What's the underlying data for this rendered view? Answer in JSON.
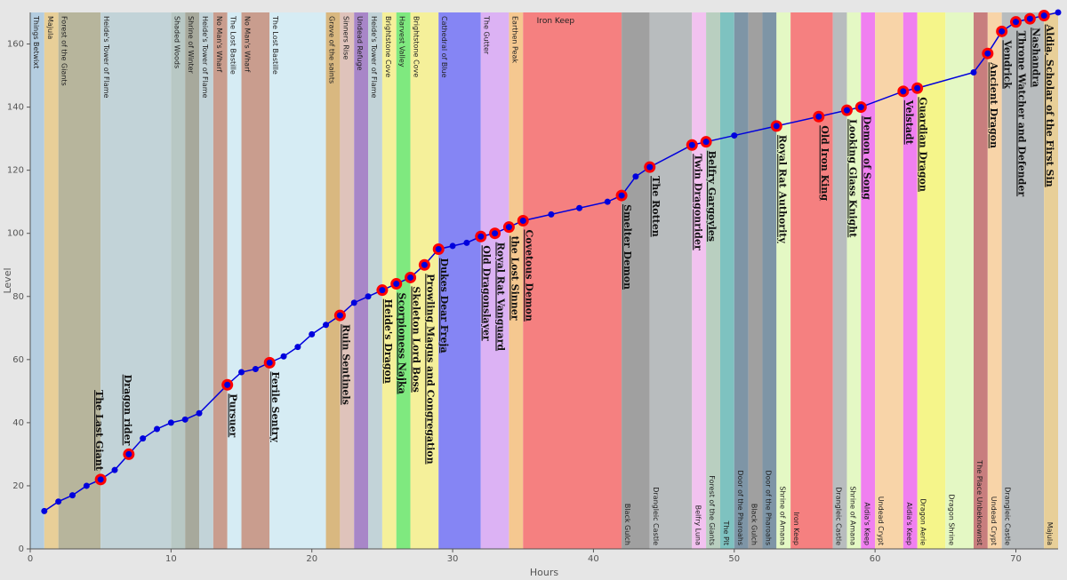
{
  "chart_data": {
    "type": "line",
    "xlabel": "Hours",
    "ylabel": "Level",
    "xlim": [
      0,
      73
    ],
    "ylim": [
      0,
      170
    ],
    "x_ticks": [
      0,
      10,
      20,
      30,
      40,
      50,
      60,
      70
    ],
    "y_ticks": [
      0,
      20,
      40,
      60,
      80,
      100,
      120,
      140,
      160
    ],
    "grid": false,
    "zones": [
      {
        "name": "Things Betwixt",
        "start": 0,
        "end": 1,
        "color": "#b4cde0"
      },
      {
        "name": "Majula",
        "start": 1,
        "end": 2,
        "color": "#e8cf98"
      },
      {
        "name": "Forest of the Giants",
        "start": 2,
        "end": 5,
        "color": "#b7b59c"
      },
      {
        "name": "Heide's Tower of Flame",
        "start": 5,
        "end": 10,
        "color": "#c2d3d8"
      },
      {
        "name": "Shaded Woods",
        "start": 10,
        "end": 11,
        "color": "#b8c8c4"
      },
      {
        "name": "Shrine of Winter",
        "start": 11,
        "end": 12,
        "color": "#a7a99c"
      },
      {
        "name": "Heide's Tower of Flame",
        "start": 12,
        "end": 13,
        "color": "#c2d3d8"
      },
      {
        "name": "No Man's Wharf",
        "start": 13,
        "end": 14,
        "color": "#c99d8e"
      },
      {
        "name": "The Lost Bastille",
        "start": 14,
        "end": 15,
        "color": "#d6ecf4"
      },
      {
        "name": "No Man's Wharf",
        "start": 15,
        "end": 17,
        "color": "#c99d8e"
      },
      {
        "name": "The Lost Bastille",
        "start": 17,
        "end": 21,
        "color": "#d6ecf4"
      },
      {
        "name": "Grave of the saints",
        "start": 21,
        "end": 22,
        "color": "#d9b880"
      },
      {
        "name": "Sinners Rise",
        "start": 22,
        "end": 23,
        "color": "#dfc3bb"
      },
      {
        "name": "Undead Refuge",
        "start": 23,
        "end": 24,
        "color": "#a886c8"
      },
      {
        "name": "Heide's Tower of Flame",
        "start": 24,
        "end": 25,
        "color": "#c2d3d8"
      },
      {
        "name": "Brightstone Cove",
        "start": 25,
        "end": 26,
        "color": "#f5f09a"
      },
      {
        "name": "Harvest Valley",
        "start": 26,
        "end": 27,
        "color": "#7fe97f"
      },
      {
        "name": "Brightstone Cove",
        "start": 27,
        "end": 29,
        "color": "#f5f09a"
      },
      {
        "name": "Cathedral of Blue",
        "start": 29,
        "end": 32,
        "color": "#8585f4"
      },
      {
        "name": "The Gutter",
        "start": 32,
        "end": 34,
        "color": "#dcb2f4"
      },
      {
        "name": "Earthen Peak",
        "start": 34,
        "end": 35,
        "color": "#f5c890"
      },
      {
        "name": "Iron Keep",
        "start": 35,
        "end": 42,
        "color": "#f58080"
      },
      {
        "name": "Black Gulch",
        "start": 42,
        "end": 44,
        "color": "#a0a0a0"
      },
      {
        "name": "Drangleic Castle",
        "start": 44,
        "end": 47,
        "color": "#b8bcbe"
      },
      {
        "name": "Belfry Luna",
        "start": 47,
        "end": 48,
        "color": "#f2c2f0"
      },
      {
        "name": "Forest of the Giants",
        "start": 48,
        "end": 49,
        "color": "#b9cfc0"
      },
      {
        "name": "The Pit",
        "start": 49,
        "end": 50,
        "color": "#7ec2c0"
      },
      {
        "name": "Door of the Pharoahs",
        "start": 50,
        "end": 51,
        "color": "#7e95a6"
      },
      {
        "name": "Black Gulch",
        "start": 51,
        "end": 52,
        "color": "#a0a0a0"
      },
      {
        "name": "Door of the Pharoahs",
        "start": 52,
        "end": 53,
        "color": "#7e95a6"
      },
      {
        "name": "Shrine of Amana",
        "start": 53,
        "end": 54,
        "color": "#e4f8c4"
      },
      {
        "name": "Iron Keep",
        "start": 54,
        "end": 57,
        "color": "#f58080"
      },
      {
        "name": "Drangleic Castle",
        "start": 57,
        "end": 58,
        "color": "#b8bcbe"
      },
      {
        "name": "Shrine of Amana",
        "start": 58,
        "end": 59,
        "color": "#e4f8c4"
      },
      {
        "name": "Aldia's Keep",
        "start": 59,
        "end": 60,
        "color": "#f080f0"
      },
      {
        "name": "Undead Crypt",
        "start": 60,
        "end": 62,
        "color": "#f8d4a8"
      },
      {
        "name": "Aldia's Keep",
        "start": 62,
        "end": 63,
        "color": "#f080f0"
      },
      {
        "name": "Dragon Aerie",
        "start": 63,
        "end": 65,
        "color": "#f5f58a"
      },
      {
        "name": "Dragon Shrine",
        "start": 65,
        "end": 67,
        "color": "#e4f8c4"
      },
      {
        "name": "The Place Unbeknownst",
        "start": 67,
        "end": 68,
        "color": "#c87e7e"
      },
      {
        "name": "Undead Crypt",
        "start": 68,
        "end": 69,
        "color": "#f8d4a8"
      },
      {
        "name": "Drangleic Castle",
        "start": 69,
        "end": 72,
        "color": "#b8bcbe"
      },
      {
        "name": "Majula",
        "start": 72,
        "end": 73,
        "color": "#e8cf98"
      }
    ],
    "zone_label_position": [
      "top",
      "top",
      "top",
      "top",
      "top",
      "top",
      "top",
      "top",
      "top",
      "top",
      "top",
      "top",
      "top",
      "top",
      "top",
      "top",
      "top",
      "top",
      "top",
      "top",
      "top",
      "top",
      "bottom",
      "bottom",
      "bottom",
      "bottom",
      "bottom",
      "bottom",
      "bottom",
      "bottom",
      "bottom",
      "bottom",
      "bottom",
      "bottom",
      "bottom",
      "bottom",
      "bottom",
      "bottom",
      "bottom",
      "bottom",
      "bottom",
      "bottom",
      "bottom"
    ],
    "series": [
      {
        "type": "line",
        "x": [
          1,
          2,
          3,
          4,
          5,
          6,
          7,
          8,
          9,
          10,
          11,
          12,
          14,
          15,
          16,
          17,
          18,
          19,
          20,
          21,
          22,
          23,
          24,
          25,
          26,
          27,
          28,
          29,
          30,
          31,
          32,
          33,
          34,
          35,
          37,
          39,
          41,
          42,
          43,
          44,
          47,
          48,
          50,
          53,
          56,
          58,
          59,
          62,
          63,
          67,
          68,
          69,
          70,
          71,
          72,
          73
        ],
        "y": [
          12,
          15,
          17,
          20,
          22,
          25,
          30,
          35,
          38,
          40,
          41,
          43,
          52,
          56,
          57,
          59,
          61,
          64,
          68,
          71,
          74,
          78,
          80,
          82,
          84,
          86,
          90,
          95,
          96,
          97,
          99,
          100,
          102,
          104,
          106,
          108,
          110,
          112,
          118,
          121,
          128,
          129,
          131,
          134,
          137,
          139,
          140,
          145,
          146,
          151,
          157,
          164,
          167,
          168,
          169,
          170
        ]
      }
    ],
    "bosses": [
      {
        "name": "The Last Giant",
        "x": 5,
        "y": 22
      },
      {
        "name": "Dragon rider",
        "x": 7,
        "y": 30
      },
      {
        "name": "Pursuer",
        "x": 14,
        "y": 52
      },
      {
        "name": "Ferile Sentry",
        "x": 17,
        "y": 59
      },
      {
        "name": "Ruin Sentinels",
        "x": 22,
        "y": 74
      },
      {
        "name": "Heide's Dragon",
        "x": 25,
        "y": 82
      },
      {
        "name": "Scorpioness Najka",
        "x": 26,
        "y": 84
      },
      {
        "name": "Skeleton Lord Boss",
        "x": 27,
        "y": 86
      },
      {
        "name": "Prowling Magus and Congregation",
        "x": 28,
        "y": 90
      },
      {
        "name": "Dukes Dear Freja",
        "x": 29,
        "y": 95
      },
      {
        "name": "Old Dragonslayer",
        "x": 32,
        "y": 99
      },
      {
        "name": "Royal Rat Vanguard",
        "x": 33,
        "y": 100
      },
      {
        "name": "the Lost Sinner",
        "x": 34,
        "y": 102
      },
      {
        "name": "Covetous Demon",
        "x": 35,
        "y": 104
      },
      {
        "name": "Smelter Demon",
        "x": 42,
        "y": 112
      },
      {
        "name": "The Rotten",
        "x": 44,
        "y": 121
      },
      {
        "name": "Twin Dragonrider",
        "x": 47,
        "y": 128
      },
      {
        "name": "Belfry Gargoyles",
        "x": 48,
        "y": 129
      },
      {
        "name": "Royal Rat Authority",
        "x": 53,
        "y": 134
      },
      {
        "name": "Old Iron King",
        "x": 56,
        "y": 137
      },
      {
        "name": "Looking Glass Knight",
        "x": 58,
        "y": 139
      },
      {
        "name": "Demon of Song",
        "x": 59,
        "y": 140
      },
      {
        "name": "Velstadt",
        "x": 62,
        "y": 145
      },
      {
        "name": "Guardian Dragon",
        "x": 63,
        "y": 146
      },
      {
        "name": "Ancient Dragon",
        "x": 68,
        "y": 157
      },
      {
        "name": "Vendrick",
        "x": 69,
        "y": 164
      },
      {
        "name": "Throne Watcher and Defender",
        "x": 70,
        "y": 167
      },
      {
        "name": "Nashandra",
        "x": 71,
        "y": 168
      },
      {
        "name": "Aldia, Scholar of the First Sin",
        "x": 72,
        "y": 169
      }
    ],
    "colors": {
      "line": "#0000dd",
      "point": "#0000dd",
      "boss_point": "#ff0000",
      "background": "#e6e6e6",
      "axis": "#555555"
    }
  }
}
